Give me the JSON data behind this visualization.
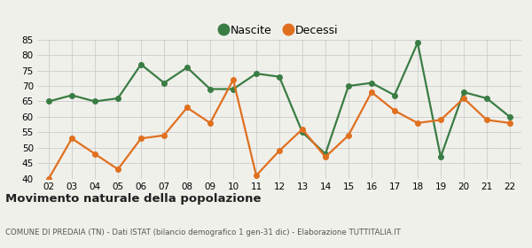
{
  "years": [
    "02",
    "03",
    "04",
    "05",
    "06",
    "07",
    "08",
    "09",
    "10",
    "11",
    "12",
    "13",
    "14",
    "15",
    "16",
    "17",
    "18",
    "19",
    "20",
    "21",
    "22"
  ],
  "nascite": [
    65,
    67,
    65,
    66,
    77,
    71,
    76,
    69,
    69,
    74,
    73,
    55,
    48,
    70,
    71,
    67,
    84,
    47,
    68,
    66,
    60
  ],
  "decessi": [
    40,
    53,
    48,
    43,
    53,
    54,
    63,
    58,
    72,
    41,
    49,
    56,
    47,
    54,
    68,
    62,
    58,
    59,
    66,
    59,
    58
  ],
  "nascite_color": "#3a7d44",
  "decessi_color": "#e07020",
  "bg_color": "#f0f0eb",
  "grid_color": "#cccccc",
  "ylim": [
    40,
    85
  ],
  "yticks": [
    40,
    45,
    50,
    55,
    60,
    65,
    70,
    75,
    80,
    85
  ],
  "title": "Movimento naturale della popolazione",
  "subtitle": "COMUNE DI PREDAIA (TN) - Dati ISTAT (bilancio demografico 1 gen-31 dic) - Elaborazione TUTTITALIA.IT",
  "legend_labels": [
    "Nascite",
    "Decessi"
  ],
  "marker": "o",
  "markersize": 4,
  "linewidth": 1.6
}
